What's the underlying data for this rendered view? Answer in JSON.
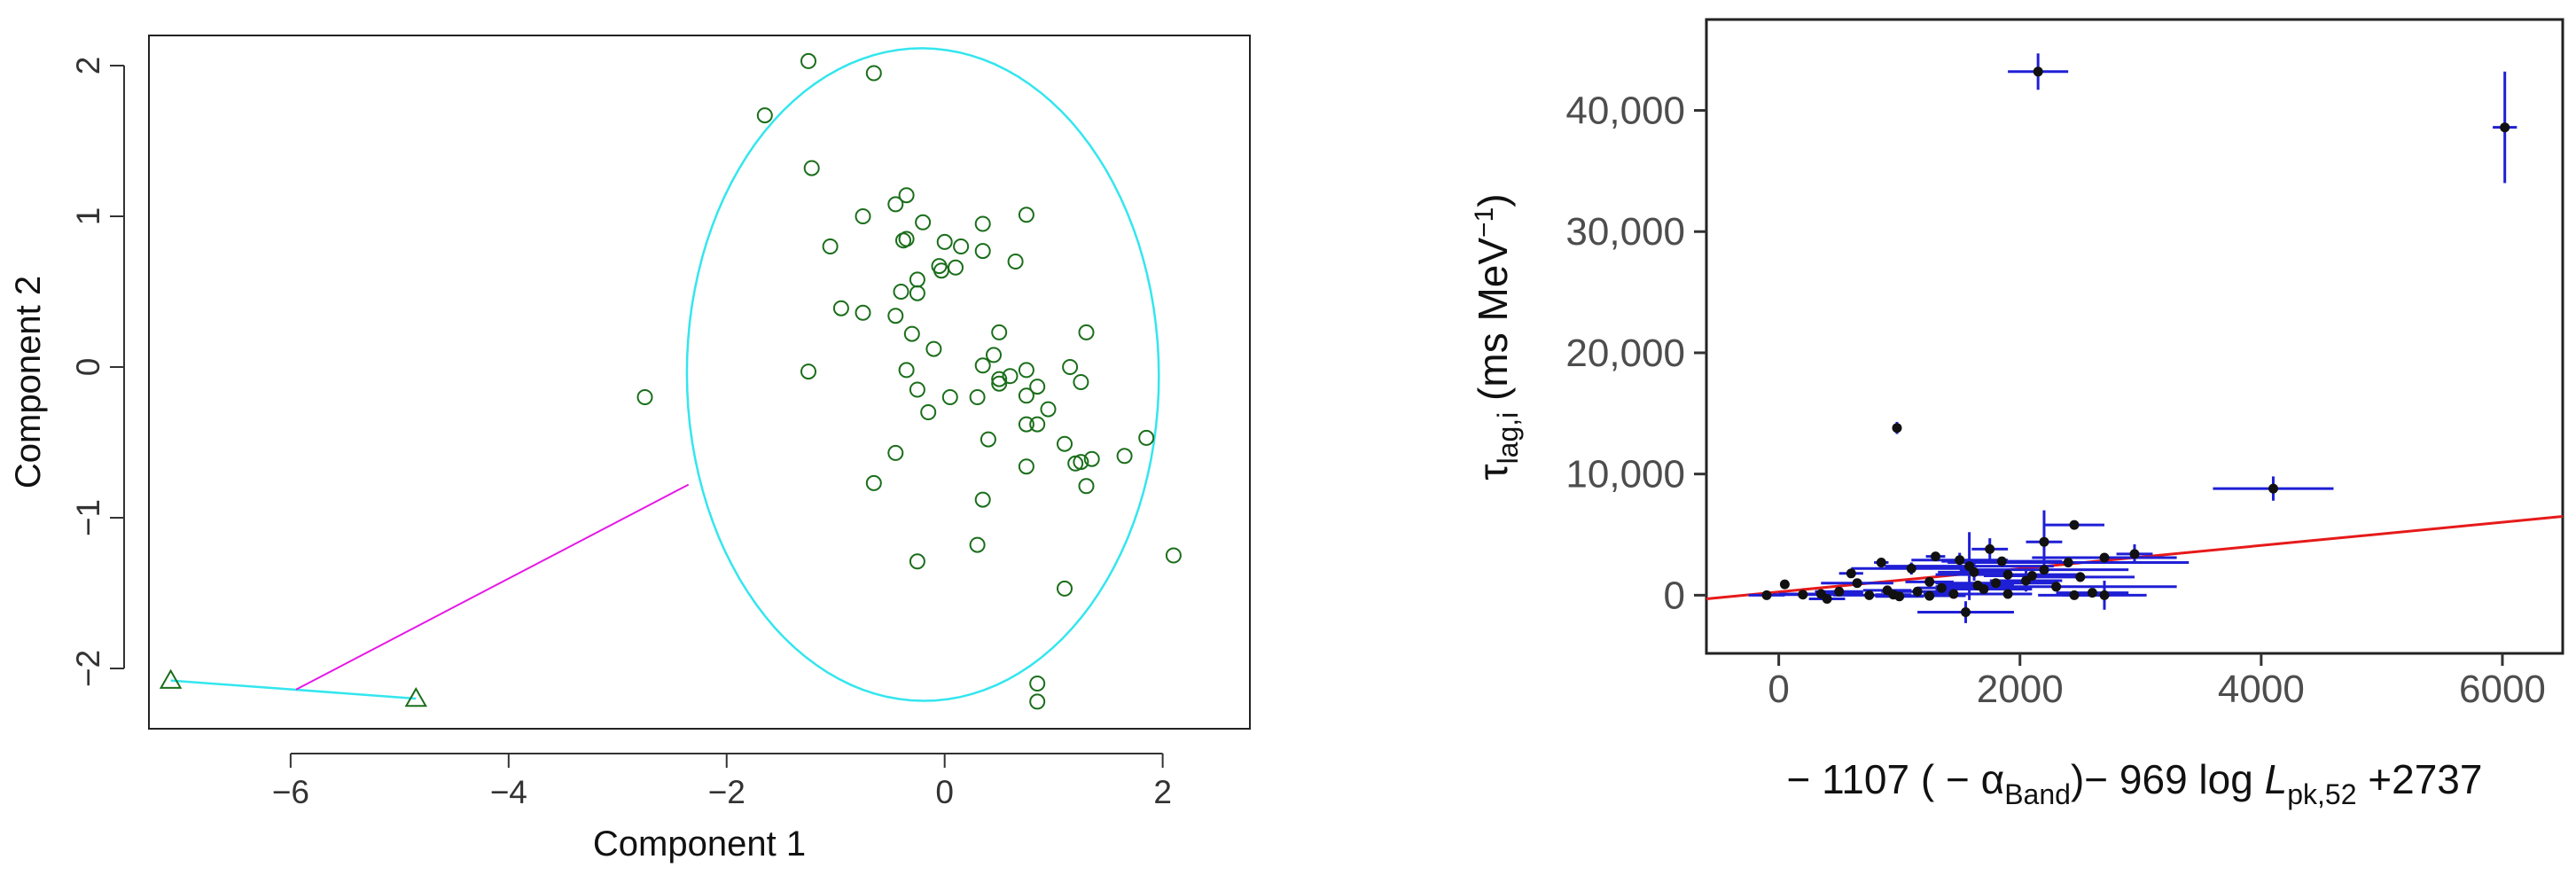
{
  "chart_data": [
    {
      "type": "scatter",
      "xlabel": "Component 1",
      "ylabel": "Component 2",
      "xlim": [
        -7.3,
        2.8
      ],
      "ylim": [
        -2.4,
        2.2
      ],
      "xticks": [
        -6,
        -4,
        -2,
        0,
        2
      ],
      "yticks": [
        -2,
        -1,
        0,
        1,
        2
      ],
      "xtick_labels": [
        "−6",
        "−4",
        "−2",
        "0",
        "2"
      ],
      "ytick_labels": [
        "−2",
        "−1",
        "0",
        "1",
        "2"
      ],
      "grid": false,
      "colors": {
        "points": "#1a6e1a",
        "ellipse": "#33e6ee",
        "connector": "#e619e6"
      },
      "cluster_main": {
        "marker": "circle",
        "ellipse": {
          "center": [
            -0.2,
            -0.05
          ],
          "rx": 2.17,
          "ry": 2.16,
          "rotation_deg": -45
        },
        "points": [
          [
            -1.25,
            2.03
          ],
          [
            -0.65,
            1.95
          ],
          [
            -1.65,
            1.67
          ],
          [
            -1.22,
            1.32
          ],
          [
            -0.35,
            1.14
          ],
          [
            -0.45,
            1.08
          ],
          [
            -0.75,
            1.0
          ],
          [
            0.75,
            1.01
          ],
          [
            -0.2,
            0.96
          ],
          [
            0.35,
            0.95
          ],
          [
            -0.35,
            0.85
          ],
          [
            -0.38,
            0.84
          ],
          [
            0.0,
            0.83
          ],
          [
            0.15,
            0.8
          ],
          [
            -1.05,
            0.8
          ],
          [
            0.35,
            0.77
          ],
          [
            0.65,
            0.7
          ],
          [
            -0.05,
            0.67
          ],
          [
            -0.03,
            0.64
          ],
          [
            0.1,
            0.66
          ],
          [
            -0.25,
            0.58
          ],
          [
            -0.4,
            0.5
          ],
          [
            -0.25,
            0.49
          ],
          [
            -0.95,
            0.39
          ],
          [
            -0.75,
            0.36
          ],
          [
            -0.45,
            0.34
          ],
          [
            -0.3,
            0.22
          ],
          [
            0.5,
            0.23
          ],
          [
            1.3,
            0.23
          ],
          [
            -0.1,
            0.12
          ],
          [
            0.45,
            0.08
          ],
          [
            0.35,
            0.01
          ],
          [
            1.15,
            0.0
          ],
          [
            -1.25,
            -0.03
          ],
          [
            -0.35,
            -0.02
          ],
          [
            0.75,
            -0.02
          ],
          [
            0.5,
            -0.08
          ],
          [
            0.5,
            -0.11
          ],
          [
            1.25,
            -0.1
          ],
          [
            -0.25,
            -0.15
          ],
          [
            0.85,
            -0.13
          ],
          [
            0.6,
            -0.06
          ],
          [
            0.05,
            -0.2
          ],
          [
            0.3,
            -0.2
          ],
          [
            0.75,
            -0.19
          ],
          [
            -0.15,
            -0.3
          ],
          [
            0.95,
            -0.28
          ],
          [
            0.75,
            -0.38
          ],
          [
            0.85,
            -0.38
          ],
          [
            1.1,
            -0.51
          ],
          [
            1.85,
            -0.47
          ],
          [
            0.4,
            -0.48
          ],
          [
            -0.45,
            -0.57
          ],
          [
            1.35,
            -0.61
          ],
          [
            1.25,
            -0.63
          ],
          [
            1.2,
            -0.64
          ],
          [
            1.65,
            -0.59
          ],
          [
            0.75,
            -0.66
          ],
          [
            -0.65,
            -0.77
          ],
          [
            1.3,
            -0.79
          ],
          [
            0.35,
            -0.88
          ],
          [
            0.3,
            -1.18
          ],
          [
            -0.25,
            -1.29
          ],
          [
            1.1,
            -1.47
          ],
          [
            2.1,
            -1.25
          ],
          [
            -2.75,
            -0.2
          ],
          [
            0.85,
            -2.1
          ],
          [
            0.85,
            -2.22
          ]
        ]
      },
      "cluster_outlier": {
        "marker": "triangle",
        "points": [
          [
            -7.1,
            -2.08
          ],
          [
            -4.85,
            -2.2
          ]
        ]
      },
      "connector": {
        "from": [
          -5.95,
          -2.14
        ],
        "to": [
          -2.35,
          -0.78
        ]
      }
    },
    {
      "type": "scatter",
      "xlabel_parts": {
        "p1": "− 1107 ( − α",
        "p1_sub": "Band",
        "p2": ")− 969 log ",
        "p2_italic": "L",
        "p2_sub": "pk,52",
        "p3": " +2737"
      },
      "ylabel_parts": {
        "tau": "τ",
        "tau_sub": "lag,i",
        "unit": " (ms MeV",
        "unit_sup": "−1",
        "close": ")"
      },
      "xlim": [
        -600,
        6500
      ],
      "ylim": [
        -4800,
        47500
      ],
      "xticks": [
        0,
        2000,
        4000,
        6000
      ],
      "yticks": [
        0,
        10000,
        20000,
        30000,
        40000
      ],
      "xtick_labels": [
        "0",
        "2000",
        "4000",
        "6000"
      ],
      "ytick_labels": [
        "0",
        "10,000",
        "20,000",
        "30,000",
        "40,000"
      ],
      "grid": false,
      "colors": {
        "points": "#111111",
        "errorbars": "#1f1fd6",
        "fit": "#e61a1a"
      },
      "fit_line": {
        "x": [
          -600,
          6500
        ],
        "y": [
          -300,
          6500
        ]
      },
      "points": [
        {
          "x": 2150,
          "y": 43200,
          "xerr": 250,
          "yerr": 1500
        },
        {
          "x": 6020,
          "y": 38600,
          "xerr": 100,
          "yerr": 4600
        },
        {
          "x": 980,
          "y": 13800,
          "xerr": 30,
          "yerr": 500
        },
        {
          "x": 4100,
          "y": 8800,
          "xerr": 500,
          "yerr": 1000
        },
        {
          "x": 2450,
          "y": 5800,
          "xerr": 250,
          "yerr": 0
        },
        {
          "x": 2200,
          "y": 4400,
          "xerr": 150,
          "yerr": 2600
        },
        {
          "x": 1750,
          "y": 3800,
          "xerr": 150,
          "yerr": 900
        },
        {
          "x": 2950,
          "y": 3400,
          "xerr": 150,
          "yerr": 800
        },
        {
          "x": 1300,
          "y": 3200,
          "xerr": 80,
          "yerr": 0
        },
        {
          "x": 2700,
          "y": 3100,
          "xerr": 600,
          "yerr": 0
        },
        {
          "x": 1500,
          "y": 2900,
          "xerr": 400,
          "yerr": 600
        },
        {
          "x": 1850,
          "y": 2800,
          "xerr": 500,
          "yerr": 0
        },
        {
          "x": 850,
          "y": 2700,
          "xerr": 60,
          "yerr": 0
        },
        {
          "x": 2400,
          "y": 2700,
          "xerr": 1000,
          "yerr": 400
        },
        {
          "x": 1580,
          "y": 2400,
          "xerr": 700,
          "yerr": 2800
        },
        {
          "x": 1100,
          "y": 2200,
          "xerr": 500,
          "yerr": 500
        },
        {
          "x": 2200,
          "y": 2100,
          "xerr": 700,
          "yerr": 300
        },
        {
          "x": 1620,
          "y": 1900,
          "xerr": 300,
          "yerr": 700
        },
        {
          "x": 1900,
          "y": 1700,
          "xerr": 600,
          "yerr": 300
        },
        {
          "x": 600,
          "y": 1800,
          "xerr": 100,
          "yerr": 300
        },
        {
          "x": 2500,
          "y": 1500,
          "xerr": 450,
          "yerr": 400
        },
        {
          "x": 2050,
          "y": 1200,
          "xerr": 300,
          "yerr": 900
        },
        {
          "x": 1250,
          "y": 1100,
          "xerr": 200,
          "yerr": 300
        },
        {
          "x": 650,
          "y": 1000,
          "xerr": 300,
          "yerr": 200
        },
        {
          "x": 50,
          "y": 900,
          "xerr": 30,
          "yerr": 0
        },
        {
          "x": 2300,
          "y": 700,
          "xerr": 1000,
          "yerr": 300
        },
        {
          "x": 1350,
          "y": 600,
          "xerr": 200,
          "yerr": 300
        },
        {
          "x": 1700,
          "y": 500,
          "xerr": 400,
          "yerr": 500
        },
        {
          "x": 900,
          "y": 400,
          "xerr": 200,
          "yerr": 0
        },
        {
          "x": 500,
          "y": 300,
          "xerr": 200,
          "yerr": 200
        },
        {
          "x": 1150,
          "y": 300,
          "xerr": 300,
          "yerr": 0
        },
        {
          "x": 2600,
          "y": 200,
          "xerr": 300,
          "yerr": 0
        },
        {
          "x": 350,
          "y": 100,
          "xerr": 350,
          "yerr": 200
        },
        {
          "x": 1900,
          "y": 100,
          "xerr": 200,
          "yerr": 300
        },
        {
          "x": 2700,
          "y": 0,
          "xerr": 350,
          "yerr": 1200
        },
        {
          "x": 1450,
          "y": 100,
          "xerr": 250,
          "yerr": 0
        },
        {
          "x": 950,
          "y": 50,
          "xerr": 150,
          "yerr": 200
        },
        {
          "x": 2450,
          "y": 0,
          "xerr": 300,
          "yerr": 0
        },
        {
          "x": 1250,
          "y": -50,
          "xerr": 300,
          "yerr": 0
        },
        {
          "x": -100,
          "y": 0,
          "xerr": 150,
          "yerr": 200
        },
        {
          "x": 200,
          "y": 50,
          "xerr": 250,
          "yerr": 0
        },
        {
          "x": 750,
          "y": 0,
          "xerr": 300,
          "yerr": 0
        },
        {
          "x": 1000,
          "y": -100,
          "xerr": 200,
          "yerr": 0
        },
        {
          "x": 400,
          "y": -300,
          "xerr": 150,
          "yerr": 200
        },
        {
          "x": 1550,
          "y": -1400,
          "xerr": 400,
          "yerr": 900
        },
        {
          "x": 1650,
          "y": 800,
          "xerr": 300,
          "yerr": 0
        },
        {
          "x": 1800,
          "y": 1000,
          "xerr": 500,
          "yerr": 200
        },
        {
          "x": 2100,
          "y": 1600,
          "xerr": 400,
          "yerr": 0
        }
      ]
    }
  ]
}
